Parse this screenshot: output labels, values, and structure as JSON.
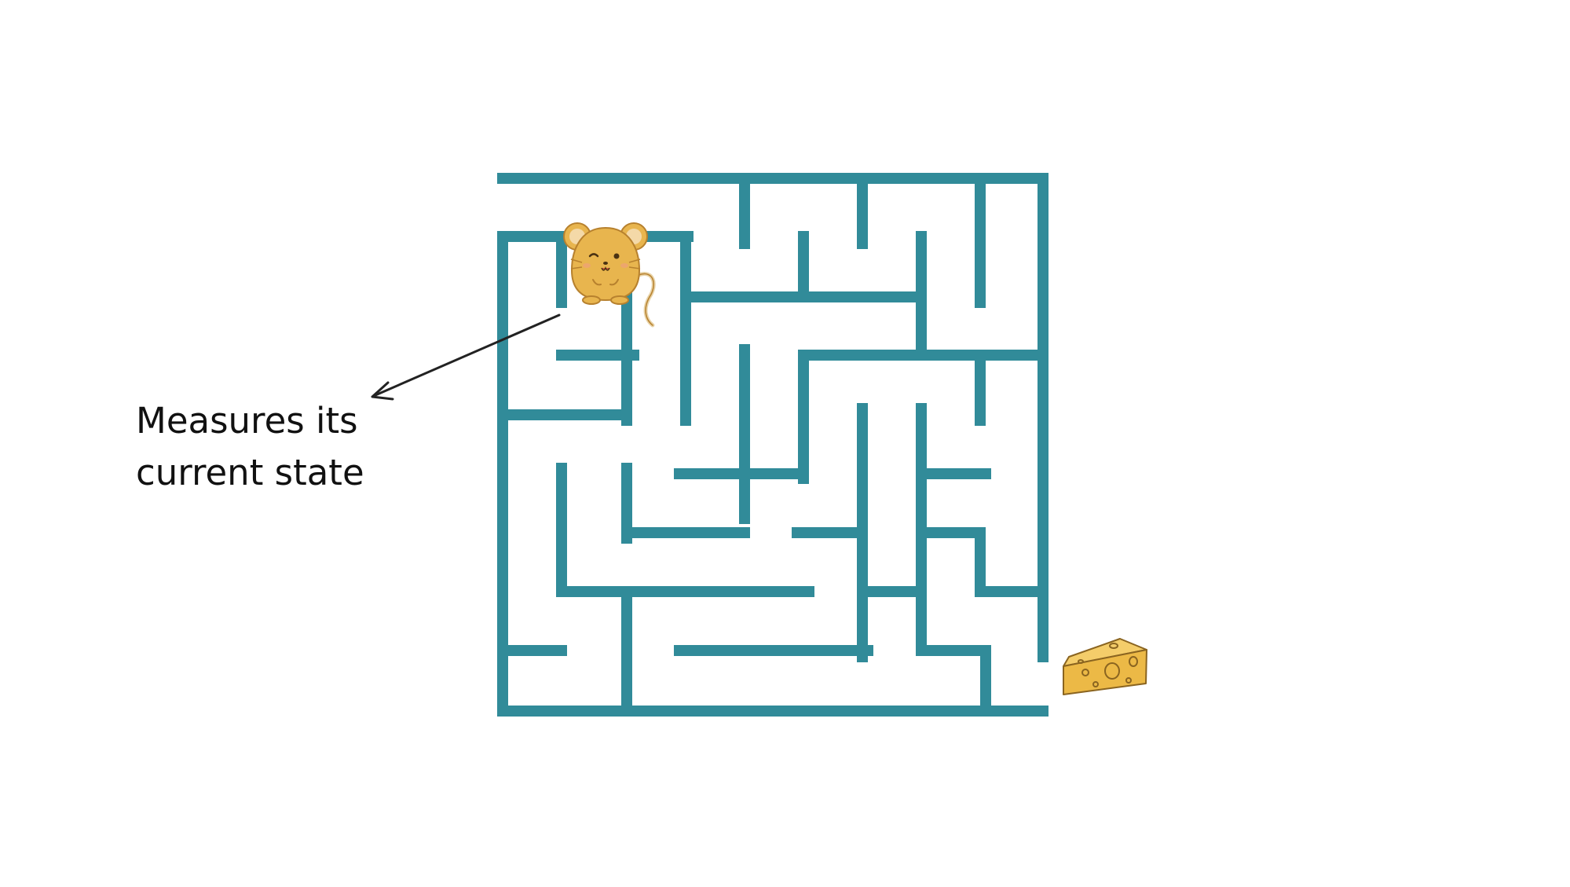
{
  "annotation": {
    "line1": "Measures its",
    "line2": "current state"
  },
  "colors": {
    "wall": "#318B99",
    "mouse_body": "#E8B54E",
    "mouse_outline": "#B7812E",
    "mouse_ear_inner": "#F4D9A8",
    "cheese": "#ECB946",
    "cheese_outline": "#8A6420",
    "arrow": "#222222",
    "text": "#111111"
  },
  "icons": {
    "agent": "mouse-icon",
    "goal": "cheese-icon"
  }
}
